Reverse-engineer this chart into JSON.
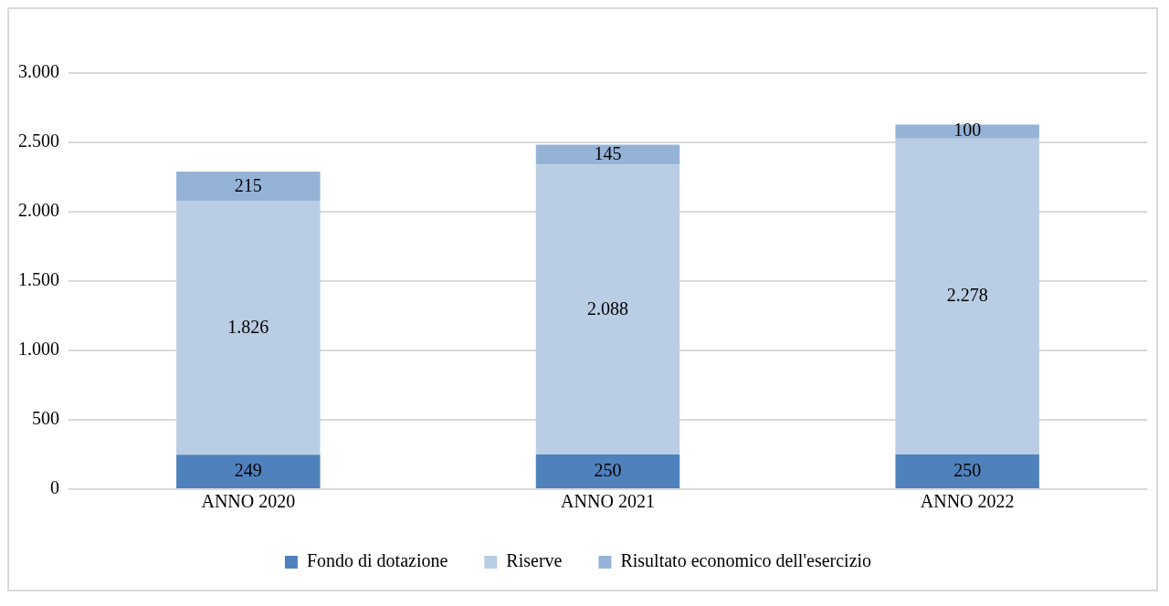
{
  "chart_data": {
    "type": "bar",
    "stacked": true,
    "categories": [
      "ANNO 2020",
      "ANNO 2021",
      "ANNO 2022"
    ],
    "series": [
      {
        "name": "Fondo di dotazione",
        "color": "#4f81bd",
        "values": [
          249,
          250,
          250
        ],
        "value_labels": [
          "249",
          "250",
          "250"
        ]
      },
      {
        "name": "Riserve",
        "color": "#b9cde4",
        "values": [
          1826,
          2088,
          2278
        ],
        "value_labels": [
          "1.826",
          "2.088",
          "2.278"
        ]
      },
      {
        "name": "Risultato economico dell'esercizio",
        "color": "#95b3d7",
        "values": [
          215,
          145,
          100
        ],
        "value_labels": [
          "215",
          "145",
          "100"
        ]
      }
    ],
    "ylim": [
      0,
      3000
    ],
    "yticks": [
      0,
      {
        "value": 500,
        "label": "500"
      },
      {
        "value": 1000,
        "label": "1.000"
      },
      {
        "value": 1500,
        "label": "1.500"
      },
      {
        "value": 2000,
        "label": "2.000"
      },
      {
        "value": 2500,
        "label": "2.500"
      },
      {
        "value": 3000,
        "label": "3.000"
      }
    ],
    "grid": "y",
    "legend": "bottom"
  }
}
